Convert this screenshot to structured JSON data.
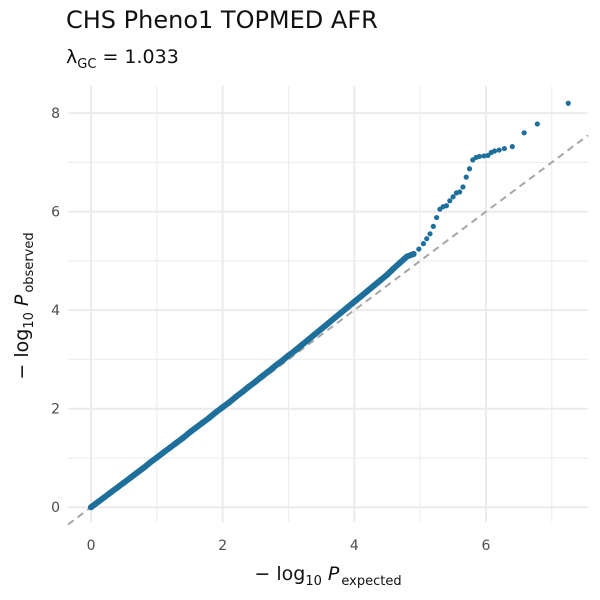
{
  "chart_data": {
    "type": "scatter",
    "title": "CHS Pheno1 TOPMED AFR",
    "subtitle": {
      "lambda_symbol": "λ",
      "lambda_subscript": "GC",
      "lambda_value": "= 1.033"
    },
    "xlabel": {
      "prefix": "− log",
      "base": "10",
      "symbol": "P",
      "subscript": "expected"
    },
    "ylabel": {
      "prefix": "− log",
      "base": "10",
      "symbol": "P",
      "subscript": "observed"
    },
    "xlim": [
      -0.35,
      7.55
    ],
    "ylim": [
      -0.3,
      8.55
    ],
    "x_ticks": [
      0,
      2,
      4,
      6
    ],
    "y_ticks": [
      0,
      2,
      4,
      6,
      8
    ],
    "x_tick_labels": [
      "0",
      "2",
      "4",
      "6"
    ],
    "y_tick_labels": [
      "0",
      "2",
      "4",
      "6",
      "8"
    ],
    "grid": true,
    "reference_line": "y = x (dashed gray)",
    "point_color": "#1f6f9c",
    "reference_color": "#a6a6a6",
    "grid_color": "#ebebeb",
    "series": [
      {
        "points": [
          [
            0.0,
            0.0
          ],
          [
            0.1,
            0.1
          ],
          [
            0.2,
            0.2
          ],
          [
            0.3,
            0.3
          ],
          [
            0.4,
            0.4
          ],
          [
            0.5,
            0.5
          ],
          [
            0.6,
            0.6
          ],
          [
            0.7,
            0.7
          ],
          [
            0.8,
            0.8
          ],
          [
            0.9,
            0.91
          ],
          [
            1.0,
            1.01
          ],
          [
            1.1,
            1.11
          ],
          [
            1.2,
            1.21
          ],
          [
            1.3,
            1.31
          ],
          [
            1.4,
            1.41
          ],
          [
            1.5,
            1.52
          ],
          [
            1.6,
            1.62
          ],
          [
            1.7,
            1.72
          ],
          [
            1.8,
            1.82
          ],
          [
            1.9,
            1.93
          ],
          [
            2.0,
            2.03
          ],
          [
            2.1,
            2.13
          ],
          [
            2.2,
            2.24
          ],
          [
            2.3,
            2.34
          ],
          [
            2.4,
            2.45
          ],
          [
            2.5,
            2.55
          ],
          [
            2.6,
            2.66
          ],
          [
            2.7,
            2.76
          ],
          [
            2.8,
            2.87
          ],
          [
            2.9,
            2.97
          ],
          [
            3.0,
            3.08
          ],
          [
            3.1,
            3.18
          ],
          [
            3.2,
            3.29
          ],
          [
            3.3,
            3.4
          ],
          [
            3.4,
            3.51
          ],
          [
            3.5,
            3.62
          ],
          [
            3.6,
            3.73
          ],
          [
            3.7,
            3.84
          ],
          [
            3.8,
            3.95
          ],
          [
            3.9,
            4.06
          ],
          [
            4.0,
            4.17
          ],
          [
            4.1,
            4.28
          ],
          [
            4.2,
            4.39
          ],
          [
            4.3,
            4.5
          ],
          [
            4.4,
            4.61
          ],
          [
            4.5,
            4.72
          ],
          [
            4.6,
            4.85
          ],
          [
            4.7,
            4.97
          ],
          [
            4.8,
            5.09
          ],
          [
            4.9,
            5.14
          ],
          [
            4.98,
            5.24
          ],
          [
            5.05,
            5.35
          ],
          [
            5.1,
            5.45
          ],
          [
            5.15,
            5.55
          ],
          [
            5.2,
            5.7
          ],
          [
            5.25,
            5.88
          ],
          [
            5.3,
            6.05
          ],
          [
            5.35,
            6.1
          ],
          [
            5.4,
            6.12
          ],
          [
            5.45,
            6.22
          ],
          [
            5.5,
            6.3
          ],
          [
            5.55,
            6.38
          ],
          [
            5.6,
            6.4
          ],
          [
            5.65,
            6.5
          ],
          [
            5.7,
            6.7
          ],
          [
            5.75,
            6.87
          ],
          [
            5.8,
            7.05
          ],
          [
            5.85,
            7.1
          ],
          [
            5.9,
            7.12
          ],
          [
            5.97,
            7.13
          ],
          [
            6.03,
            7.14
          ],
          [
            6.08,
            7.2
          ],
          [
            6.13,
            7.23
          ],
          [
            6.2,
            7.25
          ],
          [
            6.28,
            7.28
          ],
          [
            6.4,
            7.32
          ],
          [
            6.58,
            7.6
          ],
          [
            6.78,
            7.78
          ],
          [
            7.25,
            8.2
          ]
        ]
      }
    ]
  }
}
